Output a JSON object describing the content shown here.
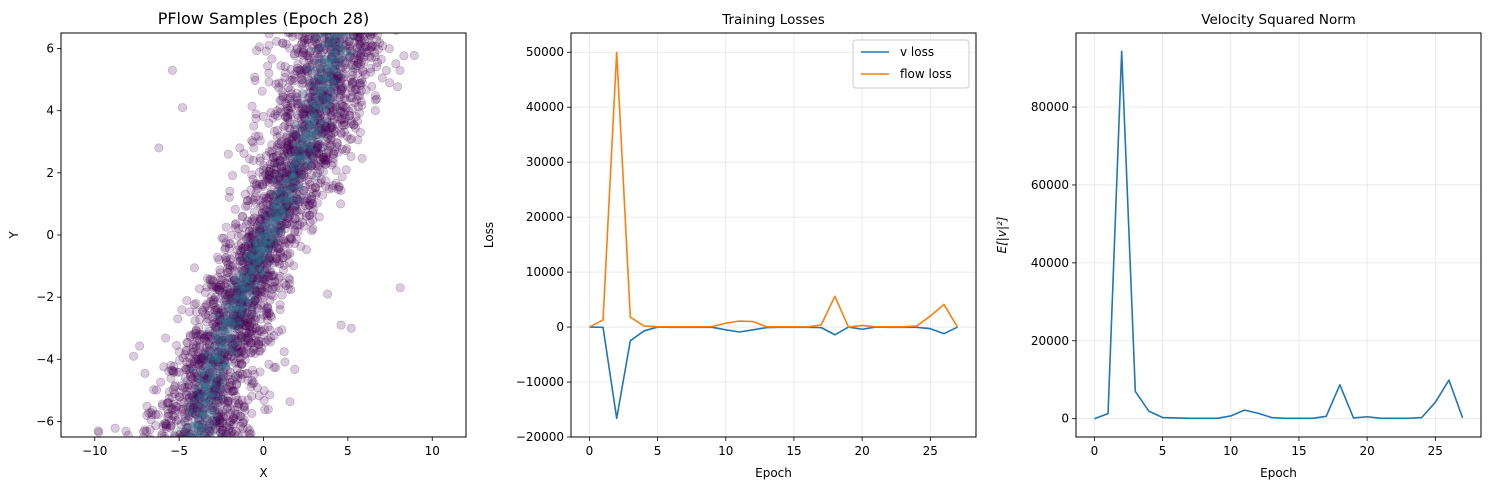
{
  "chart_data": [
    {
      "type": "scatter",
      "title": "PFlow Samples (Epoch 28)",
      "xlabel": "X",
      "ylabel": "Y",
      "xlim": [
        -12,
        12
      ],
      "ylim": [
        -6.5,
        6.5
      ],
      "xticks": [
        "−10",
        "−5",
        "0",
        "5",
        "10"
      ],
      "yticks": [
        "−6",
        "−4",
        "−2",
        "0",
        "2",
        "4",
        "6"
      ],
      "point_color": "#440154",
      "density_color": "#2a788e",
      "outliers": [
        {
          "x": 8.1,
          "y": -1.7
        },
        {
          "x": -6.2,
          "y": 2.8
        },
        {
          "x": -5.4,
          "y": 5.3
        },
        {
          "x": -4.8,
          "y": 4.1
        },
        {
          "x": 5.2,
          "y": -3.0
        },
        {
          "x": 4.6,
          "y": -2.9
        },
        {
          "x": -9.8,
          "y": -6.3
        },
        {
          "x": -4.2,
          "y": -6.2
        },
        {
          "x": -1.6,
          "y": -4.8
        },
        {
          "x": 4.8,
          "y": 4.4
        },
        {
          "x": -7.7,
          "y": -3.9
        },
        {
          "x": 3.8,
          "y": -1.9
        }
      ],
      "grid": false
    },
    {
      "type": "line",
      "title": "Training Losses",
      "xlabel": "Epoch",
      "ylabel": "Loss",
      "xlim": [
        -1.35,
        28.35
      ],
      "ylim": [
        -20000,
        53500
      ],
      "xticks": [
        "0",
        "5",
        "10",
        "15",
        "20",
        "25"
      ],
      "yticks": [
        "−20000",
        "−10000",
        "0",
        "10000",
        "20000",
        "30000",
        "40000",
        "50000"
      ],
      "x": [
        0,
        1,
        2,
        3,
        4,
        5,
        6,
        7,
        8,
        9,
        10,
        11,
        12,
        13,
        14,
        15,
        16,
        17,
        18,
        19,
        20,
        21,
        22,
        23,
        24,
        25,
        26,
        27
      ],
      "series": [
        {
          "name": "v loss",
          "color": "#1f77b4",
          "values": [
            0,
            -50,
            -16600,
            -2500,
            -700,
            0,
            -50,
            -50,
            -50,
            -50,
            -500,
            -900,
            -500,
            -100,
            -50,
            -50,
            -50,
            -100,
            -1400,
            0,
            -400,
            0,
            -50,
            -50,
            -50,
            -300,
            -1200,
            0
          ]
        },
        {
          "name": "flow loss",
          "color": "#ff7f0e",
          "values": [
            0,
            1300,
            50000,
            1800,
            200,
            50,
            50,
            50,
            50,
            100,
            700,
            1100,
            1000,
            50,
            50,
            50,
            50,
            400,
            5600,
            0,
            300,
            50,
            50,
            50,
            200,
            2000,
            4100,
            0
          ]
        }
      ],
      "legend": "top-right",
      "grid": true
    },
    {
      "type": "line",
      "title": "Velocity Squared Norm",
      "xlabel": "Epoch",
      "ylabel": "E[|v|²]",
      "xlim": [
        -1.35,
        28.35
      ],
      "ylim": [
        -4700,
        99000
      ],
      "xticks": [
        "0",
        "5",
        "10",
        "15",
        "20",
        "25"
      ],
      "yticks": [
        "0",
        "20000",
        "40000",
        "60000",
        "80000"
      ],
      "x": [
        0,
        1,
        2,
        3,
        4,
        5,
        6,
        7,
        8,
        9,
        10,
        11,
        12,
        13,
        14,
        15,
        16,
        17,
        18,
        19,
        20,
        21,
        22,
        23,
        24,
        25,
        26,
        27
      ],
      "series": [
        {
          "name": "",
          "color": "#1f77b4",
          "values": [
            0,
            1300,
            94300,
            7000,
            1900,
            300,
            200,
            100,
            100,
            100,
            700,
            2200,
            1400,
            300,
            100,
            100,
            100,
            600,
            8700,
            200,
            500,
            100,
            100,
            100,
            300,
            4200,
            9900,
            200
          ]
        }
      ],
      "grid": true
    }
  ]
}
